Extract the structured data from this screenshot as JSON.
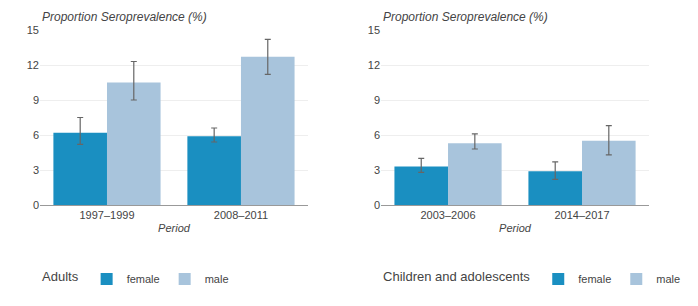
{
  "chart_data": [
    {
      "type": "bar",
      "title": "Proportion Seroprevalence (%)",
      "subtitle": "Adults",
      "xlabel": "Period",
      "categories": [
        "1997–1999",
        "2008–2011"
      ],
      "series": [
        {
          "name": "female",
          "color": "#1a8fc1",
          "values": [
            6.2,
            5.9
          ],
          "err_low": [
            1.0,
            0.5
          ],
          "err_high": [
            1.3,
            0.7
          ]
        },
        {
          "name": "male",
          "color": "#a8c4dc",
          "values": [
            10.5,
            12.7
          ],
          "err_low": [
            1.5,
            1.5
          ],
          "err_high": [
            1.8,
            1.5
          ]
        }
      ],
      "ylim": [
        0,
        15
      ],
      "yticks": [
        0,
        3,
        6,
        9,
        12,
        15
      ],
      "grid": true,
      "legend": "bottom"
    },
    {
      "type": "bar",
      "title": "Proportion Seroprevalence (%)",
      "subtitle": "Children and adolescents",
      "xlabel": "Period",
      "categories": [
        "2003–2006",
        "2014–2017"
      ],
      "series": [
        {
          "name": "female",
          "color": "#1a8fc1",
          "values": [
            3.3,
            2.9
          ],
          "err_low": [
            0.5,
            0.7
          ],
          "err_high": [
            0.7,
            0.8
          ]
        },
        {
          "name": "male",
          "color": "#a8c4dc",
          "values": [
            5.3,
            5.5
          ],
          "err_low": [
            0.5,
            1.2
          ],
          "err_high": [
            0.8,
            1.3
          ]
        }
      ],
      "ylim": [
        0,
        15
      ],
      "yticks": [
        0,
        3,
        6,
        9,
        12,
        15
      ],
      "grid": true,
      "legend": "bottom"
    }
  ]
}
